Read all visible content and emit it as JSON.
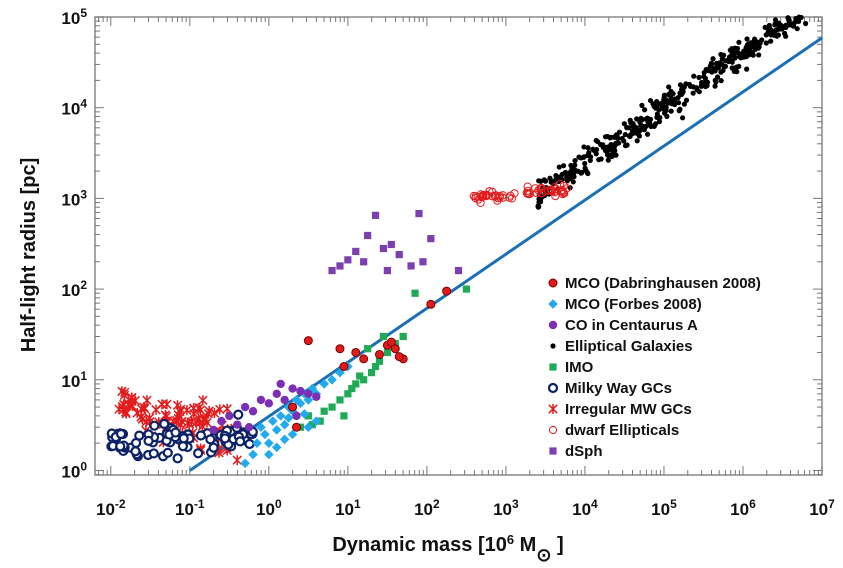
{
  "chart_data": {
    "type": "scatter",
    "xscale": "log",
    "yscale": "log",
    "xlim_exp": [
      -2.2,
      7
    ],
    "ylim_exp": [
      -0.05,
      5
    ],
    "xlabel_text": "Dynamic mass [10",
    "xlabel_sup": "6",
    "xlabel_unit": " M",
    "xlabel_sym": "⊙",
    "xlabel_end": " ]",
    "ylabel": "Half-light radius [pc]",
    "x_ticks": [
      {
        "exp": -2,
        "label": "-2"
      },
      {
        "exp": -1,
        "label": "-1"
      },
      {
        "exp": 0,
        "label": "0"
      },
      {
        "exp": 1,
        "label": "1"
      },
      {
        "exp": 2,
        "label": "2"
      },
      {
        "exp": 3,
        "label": "3"
      },
      {
        "exp": 4,
        "label": "4"
      },
      {
        "exp": 5,
        "label": "5"
      },
      {
        "exp": 6,
        "label": "6"
      },
      {
        "exp": 7,
        "label": "7"
      }
    ],
    "y_ticks": [
      {
        "exp": 0,
        "label": "0"
      },
      {
        "exp": 1,
        "label": "1"
      },
      {
        "exp": 2,
        "label": "2"
      },
      {
        "exp": 3,
        "label": "3"
      },
      {
        "exp": 4,
        "label": "4"
      },
      {
        "exp": 5,
        "label": "5"
      }
    ],
    "tick_base": "10",
    "fit_line": {
      "color": "#1a6fb5",
      "points": [
        [
          -1.0,
          0.0
        ],
        [
          7.0,
          4.77
        ]
      ]
    },
    "series": [
      {
        "name": "MCO (Dabringhausen 2008)",
        "marker": "circle-fill-edge",
        "color": "#e31a1c",
        "edge": "#7a0000",
        "points": [
          [
            0.5,
            27
          ],
          [
            0.9,
            22
          ],
          [
            1.1,
            20
          ],
          [
            1.2,
            17
          ],
          [
            1.4,
            19
          ],
          [
            1.5,
            24
          ],
          [
            1.6,
            22
          ],
          [
            0.95,
            14
          ],
          [
            0.3,
            5
          ],
          [
            0.35,
            3
          ],
          [
            1.7,
            17
          ],
          [
            1.55,
            26
          ],
          [
            1.65,
            18
          ],
          [
            2.25,
            95
          ],
          [
            2.05,
            68
          ]
        ]
      },
      {
        "name": "MCO (Forbes 2008)",
        "marker": "diamond",
        "color": "#22aaee",
        "points": [
          [
            -0.1,
            3
          ],
          [
            -0.05,
            2.5
          ],
          [
            0.0,
            2.0
          ],
          [
            0.05,
            3.5
          ],
          [
            0.1,
            2.8
          ],
          [
            0.15,
            4
          ],
          [
            0.2,
            3.2
          ],
          [
            0.25,
            5
          ],
          [
            0.3,
            4.5
          ],
          [
            0.35,
            6
          ],
          [
            0.4,
            5.5
          ],
          [
            0.45,
            7
          ],
          [
            0.5,
            6
          ],
          [
            0.55,
            8
          ],
          [
            0.6,
            7
          ],
          [
            0.7,
            9
          ],
          [
            0.8,
            10
          ],
          [
            0.9,
            12
          ],
          [
            1.0,
            14
          ],
          [
            0.2,
            2.2
          ],
          [
            -0.2,
            1.5
          ],
          [
            -0.3,
            1.2
          ],
          [
            0.0,
            1.5
          ],
          [
            0.1,
            1.8
          ],
          [
            0.3,
            2.5
          ],
          [
            0.5,
            3
          ],
          [
            0.6,
            3.5
          ],
          [
            -0.15,
            2
          ],
          [
            0.25,
            3.8
          ],
          [
            0.45,
            4.2
          ]
        ]
      },
      {
        "name": "CO in Centaurus A",
        "marker": "circle-fill",
        "color": "#7b2fb5",
        "points": [
          [
            -0.7,
            2.8
          ],
          [
            -0.5,
            4
          ],
          [
            -0.4,
            3.2
          ],
          [
            -0.3,
            5
          ],
          [
            -0.2,
            4.5
          ],
          [
            -0.1,
            6
          ],
          [
            0.0,
            5.5
          ],
          [
            0.1,
            7
          ],
          [
            0.2,
            6
          ],
          [
            0.3,
            8
          ],
          [
            0.4,
            7.5
          ],
          [
            0.5,
            7
          ],
          [
            0.6,
            6.5
          ],
          [
            -0.6,
            3.5
          ],
          [
            0.15,
            9
          ],
          [
            -0.25,
            3
          ],
          [
            0.35,
            4
          ]
        ]
      },
      {
        "name": "Elliptical Galaxies",
        "marker": "dot",
        "color": "#000000",
        "generated": true,
        "gen": {
          "x_from": 3.4,
          "x_to": 6.8,
          "count": 430,
          "slope": 0.6,
          "intercept": 1.0,
          "scatter": 0.14
        }
      },
      {
        "name": "IMO",
        "marker": "square",
        "color": "#1faa55",
        "points": [
          [
            0.4,
            3
          ],
          [
            0.5,
            4
          ],
          [
            0.55,
            3.2
          ],
          [
            0.7,
            4.5
          ],
          [
            0.8,
            5
          ],
          [
            0.9,
            6
          ],
          [
            1.0,
            7
          ],
          [
            1.05,
            8
          ],
          [
            1.1,
            9
          ],
          [
            1.2,
            10
          ],
          [
            1.3,
            12
          ],
          [
            1.35,
            14
          ],
          [
            1.4,
            16
          ],
          [
            1.5,
            20
          ],
          [
            1.6,
            25
          ],
          [
            1.7,
            30
          ],
          [
            1.85,
            90
          ],
          [
            2.5,
            100
          ],
          [
            0.95,
            4
          ],
          [
            1.15,
            11
          ],
          [
            1.25,
            22
          ],
          [
            1.45,
            30
          ],
          [
            0.65,
            3.5
          ]
        ]
      },
      {
        "name": "Milky Way GCs",
        "marker": "circle-open",
        "color": "#0c2266",
        "generated": true,
        "gen": {
          "x_from": -2.0,
          "x_to": -0.2,
          "count": 80,
          "slope": 0.05,
          "intercept": 0.4,
          "scatter": 0.15
        }
      },
      {
        "name": "Irregular MW GCs",
        "marker": "star",
        "color": "#e31a1c",
        "generated": true,
        "gen": {
          "x_from": -1.9,
          "x_to": -0.4,
          "count": 95,
          "slope": -0.25,
          "intercept": 0.28,
          "scatter": 0.2
        }
      },
      {
        "name": "dwarf Ellipticals",
        "marker": "circle-open-red",
        "color": "#e31a1c",
        "generated": true,
        "gen": {
          "x_from": 2.55,
          "x_to": 3.8,
          "count": 65,
          "slope": 0.08,
          "intercept": 2.8,
          "scatter": 0.05
        }
      },
      {
        "name": "dSph",
        "marker": "square",
        "color": "#7b3fb0",
        "points": [
          [
            0.8,
            160
          ],
          [
            0.9,
            180
          ],
          [
            1.0,
            210
          ],
          [
            1.1,
            260
          ],
          [
            1.25,
            390
          ],
          [
            1.35,
            650
          ],
          [
            1.45,
            280
          ],
          [
            1.55,
            310
          ],
          [
            1.65,
            240
          ],
          [
            1.8,
            180
          ],
          [
            1.9,
            680
          ],
          [
            1.95,
            200
          ],
          [
            2.05,
            360
          ],
          [
            2.4,
            160
          ],
          [
            1.5,
            160
          ],
          [
            1.2,
            200
          ]
        ]
      }
    ],
    "legend_position": "right"
  }
}
